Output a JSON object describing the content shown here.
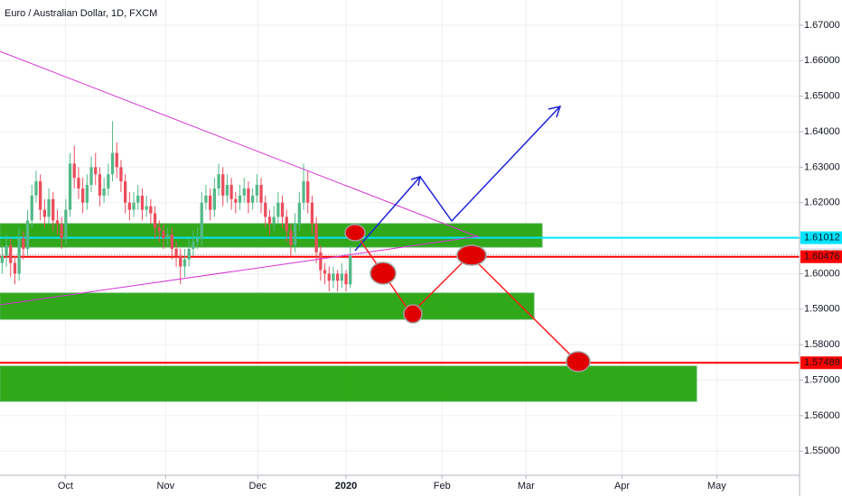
{
  "chart_data": {
    "type": "candlestick",
    "title": "Euro / Australian Dollar, 1D, FXCM",
    "up_color": "#53b987",
    "down_color": "#eb4d5c",
    "grid": true,
    "ylim": [
      1.5432,
      1.6771
    ],
    "yticks": [
      {
        "value": 1.55,
        "label": "1.55000"
      },
      {
        "value": 1.56,
        "label": "1.56000"
      },
      {
        "value": 1.57,
        "label": "1.57000"
      },
      {
        "value": 1.58,
        "label": "1.58000"
      },
      {
        "value": 1.59,
        "label": "1.59000"
      },
      {
        "value": 1.6,
        "label": "1.60000"
      },
      {
        "value": 1.61,
        "label": "1.61000"
      },
      {
        "value": 1.62,
        "label": "1.62000"
      },
      {
        "value": 1.63,
        "label": "1.63000"
      },
      {
        "value": 1.64,
        "label": "1.64000"
      },
      {
        "value": 1.65,
        "label": "1.65000"
      },
      {
        "value": 1.66,
        "label": "1.66000"
      },
      {
        "value": 1.67,
        "label": "1.67000"
      }
    ],
    "xlim": [
      -0.5,
      187.8
    ],
    "xticks": [
      {
        "value": 14.9,
        "label": "Oct"
      },
      {
        "value": 38.5,
        "label": "Nov"
      },
      {
        "value": 60.2,
        "label": "Dec"
      },
      {
        "value": 81,
        "label": "2020"
      },
      {
        "value": 103.6,
        "label": "Feb"
      },
      {
        "value": 123.4,
        "label": "Mar"
      },
      {
        "value": 146,
        "label": "Apr"
      },
      {
        "value": 168.3,
        "label": "May"
      }
    ],
    "price_labels": [
      {
        "value": 1.61012,
        "label": "1.61012",
        "color": "#00e5ff",
        "text_color": "#131722"
      },
      {
        "value": 1.6054,
        "label": "1.60540",
        "color": "#e0e3eb",
        "text_color": "#131722"
      },
      {
        "value": 1.60476,
        "label": "1.60476",
        "color": "#ff0000",
        "text_color": "#ffffff"
      },
      {
        "value": 1.57489,
        "label": "1.57489",
        "color": "#ff0000",
        "text_color": "#ffffff"
      }
    ],
    "candles": [
      [
        1.603,
        1.608,
        1.6,
        1.605
      ],
      [
        1.605,
        1.611,
        1.602,
        1.608
      ],
      [
        1.608,
        1.61,
        1.599,
        1.603
      ],
      [
        1.603,
        1.605,
        1.597,
        1.6
      ],
      [
        1.6,
        1.613,
        1.598,
        1.61
      ],
      [
        1.61,
        1.612,
        1.604,
        1.607
      ],
      [
        1.607,
        1.618,
        1.605,
        1.615
      ],
      [
        1.615,
        1.625,
        1.613,
        1.622
      ],
      [
        1.622,
        1.629,
        1.62,
        1.626
      ],
      [
        1.626,
        1.628,
        1.615,
        1.618
      ],
      [
        1.618,
        1.621,
        1.613,
        1.616
      ],
      [
        1.616,
        1.624,
        1.614,
        1.621
      ],
      [
        1.621,
        1.623,
        1.612,
        1.615
      ],
      [
        1.615,
        1.618,
        1.611,
        1.614
      ],
      [
        1.614,
        1.616,
        1.607,
        1.61
      ],
      [
        1.61,
        1.621,
        1.608,
        1.618
      ],
      [
        1.618,
        1.634,
        1.616,
        1.631
      ],
      [
        1.631,
        1.636,
        1.624,
        1.627
      ],
      [
        1.627,
        1.63,
        1.621,
        1.624
      ],
      [
        1.624,
        1.627,
        1.617,
        1.62
      ],
      [
        1.62,
        1.628,
        1.618,
        1.625
      ],
      [
        1.625,
        1.633,
        1.623,
        1.63
      ],
      [
        1.63,
        1.634,
        1.625,
        1.628
      ],
      [
        1.628,
        1.63,
        1.619,
        1.622
      ],
      [
        1.622,
        1.627,
        1.62,
        1.624
      ],
      [
        1.624,
        1.631,
        1.622,
        1.628
      ],
      [
        1.628,
        1.643,
        1.626,
        1.634
      ],
      [
        1.634,
        1.637,
        1.627,
        1.63
      ],
      [
        1.63,
        1.632,
        1.623,
        1.626
      ],
      [
        1.626,
        1.628,
        1.617,
        1.62
      ],
      [
        1.62,
        1.623,
        1.615,
        1.618
      ],
      [
        1.618,
        1.623,
        1.616,
        1.62
      ],
      [
        1.62,
        1.625,
        1.618,
        1.622
      ],
      [
        1.622,
        1.624,
        1.615,
        1.618
      ],
      [
        1.618,
        1.622,
        1.616,
        1.619
      ],
      [
        1.619,
        1.621,
        1.614,
        1.617
      ],
      [
        1.617,
        1.619,
        1.61,
        1.613
      ],
      [
        1.613,
        1.615,
        1.609,
        1.612
      ],
      [
        1.612,
        1.614,
        1.607,
        1.61
      ],
      [
        1.61,
        1.613,
        1.608,
        1.611
      ],
      [
        1.611,
        1.613,
        1.604,
        1.607
      ],
      [
        1.607,
        1.609,
        1.602,
        1.605
      ],
      [
        1.605,
        1.607,
        1.597,
        1.602
      ],
      [
        1.602,
        1.607,
        1.599,
        1.604
      ],
      [
        1.604,
        1.61,
        1.602,
        1.607
      ],
      [
        1.607,
        1.612,
        1.605,
        1.609
      ],
      [
        1.609,
        1.613,
        1.607,
        1.61
      ],
      [
        1.61,
        1.623,
        1.608,
        1.62
      ],
      [
        1.62,
        1.625,
        1.618,
        1.622
      ],
      [
        1.622,
        1.624,
        1.615,
        1.618
      ],
      [
        1.618,
        1.627,
        1.616,
        1.624
      ],
      [
        1.624,
        1.631,
        1.622,
        1.628
      ],
      [
        1.628,
        1.63,
        1.619,
        1.622
      ],
      [
        1.622,
        1.628,
        1.62,
        1.625
      ],
      [
        1.625,
        1.627,
        1.618,
        1.621
      ],
      [
        1.621,
        1.623,
        1.617,
        1.62
      ],
      [
        1.62,
        1.625,
        1.618,
        1.622
      ],
      [
        1.622,
        1.627,
        1.62,
        1.624
      ],
      [
        1.624,
        1.626,
        1.617,
        1.62
      ],
      [
        1.62,
        1.624,
        1.618,
        1.622
      ],
      [
        1.622,
        1.628,
        1.62,
        1.625
      ],
      [
        1.625,
        1.627,
        1.617,
        1.62
      ],
      [
        1.62,
        1.622,
        1.613,
        1.616
      ],
      [
        1.616,
        1.618,
        1.611,
        1.614
      ],
      [
        1.614,
        1.619,
        1.612,
        1.616
      ],
      [
        1.616,
        1.623,
        1.614,
        1.62
      ],
      [
        1.62,
        1.622,
        1.613,
        1.616
      ],
      [
        1.616,
        1.618,
        1.609,
        1.612
      ],
      [
        1.612,
        1.614,
        1.605,
        1.608
      ],
      [
        1.608,
        1.617,
        1.606,
        1.614
      ],
      [
        1.614,
        1.623,
        1.612,
        1.62
      ],
      [
        1.62,
        1.631,
        1.618,
        1.626
      ],
      [
        1.626,
        1.629,
        1.617,
        1.62
      ],
      [
        1.62,
        1.622,
        1.611,
        1.614
      ],
      [
        1.614,
        1.616,
        1.603,
        1.606
      ],
      [
        1.606,
        1.608,
        1.598,
        1.601
      ],
      [
        1.601,
        1.603,
        1.597,
        1.6
      ],
      [
        1.6,
        1.602,
        1.595,
        1.598
      ],
      [
        1.598,
        1.602,
        1.596,
        1.6
      ],
      [
        1.6,
        1.601,
        1.595,
        1.598
      ],
      [
        1.598,
        1.603,
        1.596,
        1.6
      ],
      [
        1.6,
        1.601,
        1.595,
        1.597
      ],
      [
        1.597,
        1.608,
        1.596,
        1.605
      ]
    ]
  }
}
